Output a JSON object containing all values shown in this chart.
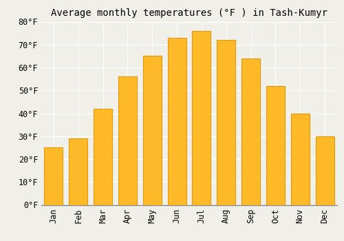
{
  "title": "Average monthly temperatures (°F ) in Tash-Kumyr",
  "months": [
    "Jan",
    "Feb",
    "Mar",
    "Apr",
    "May",
    "Jun",
    "Jul",
    "Aug",
    "Sep",
    "Oct",
    "Nov",
    "Dec"
  ],
  "values": [
    25,
    29,
    42,
    56,
    65,
    73,
    76,
    72,
    64,
    52,
    40,
    30
  ],
  "bar_color": "#FDB927",
  "bar_edge_color": "#E8960A",
  "background_color": "#F0EFE8",
  "grid_color": "#FFFFFF",
  "ylim": [
    0,
    80
  ],
  "yticks": [
    0,
    10,
    20,
    30,
    40,
    50,
    60,
    70,
    80
  ],
  "ytick_labels": [
    "0°F",
    "10°F",
    "20°F",
    "30°F",
    "40°F",
    "50°F",
    "60°F",
    "70°F",
    "80°F"
  ],
  "title_fontsize": 10,
  "tick_fontsize": 8.5,
  "font_family": "monospace"
}
